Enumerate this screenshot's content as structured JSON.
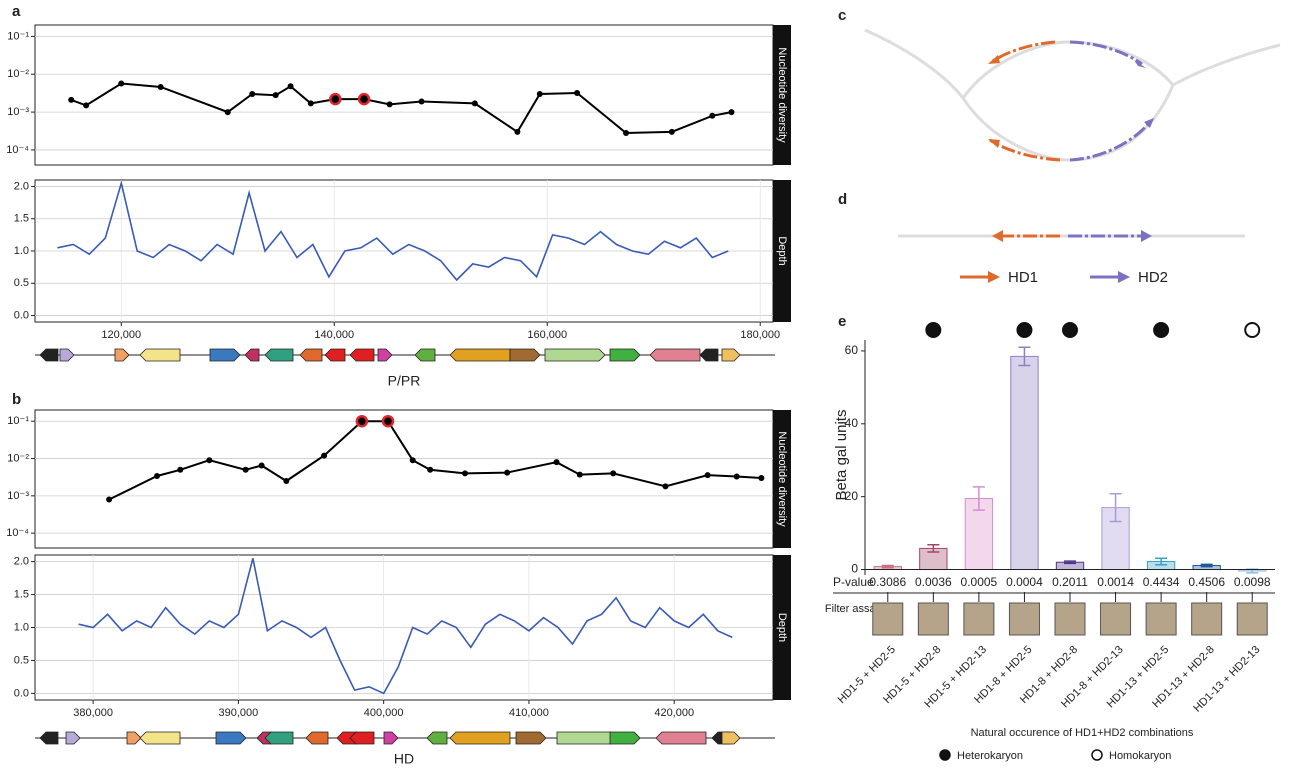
{
  "panel_labels": [
    "a",
    "b",
    "c",
    "d",
    "e"
  ],
  "tracks": [
    "P/PR",
    "HD"
  ],
  "diagram": {
    "legend": [
      {
        "name": "HD1",
        "color": "#e06a2c"
      },
      {
        "name": "HD2",
        "color": "#7b72c0"
      }
    ]
  },
  "chart_data": [
    {
      "type": "line",
      "ylabel": "Nucleotide diversity",
      "log_y": true,
      "grid": true,
      "color": "#000000",
      "markers": true,
      "highlight": [
        9,
        10
      ],
      "highlight_color": "#e0262b",
      "xlim": [
        111900,
        181200
      ],
      "ylim": [
        4e-05,
        0.2
      ],
      "yticks": [
        {
          "value": 0.1,
          "label": "10⁻¹"
        },
        {
          "value": 0.01,
          "label": "10⁻²"
        },
        {
          "value": 0.001,
          "label": "10⁻³"
        },
        {
          "value": 0.0001,
          "label": "10⁻⁴"
        }
      ],
      "x": [
        115300,
        116700,
        120000,
        123700,
        130000,
        132300,
        134500,
        135900,
        137800,
        140100,
        142800,
        145200,
        148200,
        153200,
        157200,
        159300,
        162800,
        167400,
        171700,
        175500,
        177300
      ],
      "values": [
        0.0021,
        0.0015,
        0.0057,
        0.0046,
        0.001,
        0.003,
        0.0028,
        0.0048,
        0.0017,
        0.0022,
        0.0022,
        0.0016,
        0.0019,
        0.0017,
        0.0003,
        0.003,
        0.0032,
        0.00028,
        0.0003,
        0.0008,
        0.001
      ]
    },
    {
      "type": "line",
      "ylabel": "Depth",
      "grid": true,
      "color": "#3a5bb5",
      "markers": false,
      "xlim": [
        111900,
        181200
      ],
      "ylim": [
        -0.1,
        2.1
      ],
      "xticks": [
        {
          "value": 120000,
          "label": "120,000"
        },
        {
          "value": 140000,
          "label": "140,000"
        },
        {
          "value": 160000,
          "label": "160,000"
        },
        {
          "value": 180000,
          "label": "180,000"
        }
      ],
      "yticks": [
        {
          "value": 0,
          "label": "0.0"
        },
        0.5,
        {
          "value": 1,
          "label": "1.0"
        },
        1.5,
        {
          "value": 2,
          "label": "2.0"
        }
      ],
      "x": [
        114000,
        115500,
        117000,
        118500,
        120000,
        121500,
        123000,
        124500,
        126000,
        127500,
        129000,
        130500,
        132000,
        133500,
        135000,
        136500,
        138000,
        139500,
        141000,
        142500,
        144000,
        145500,
        147000,
        148500,
        150000,
        151500,
        153000,
        154500,
        156000,
        157500,
        159000,
        160500,
        162000,
        163500,
        165000,
        166500,
        168000,
        169500,
        171000,
        172500,
        174000,
        175500,
        177000
      ],
      "values": [
        1.05,
        1.1,
        0.95,
        1.2,
        2.05,
        1.0,
        0.9,
        1.1,
        1.0,
        0.85,
        1.1,
        0.95,
        1.9,
        1.0,
        1.3,
        0.9,
        1.1,
        0.6,
        1.0,
        1.05,
        1.2,
        0.95,
        1.1,
        1.0,
        0.85,
        0.55,
        0.8,
        0.75,
        0.9,
        0.85,
        0.6,
        1.25,
        1.2,
        1.1,
        1.3,
        1.1,
        1.0,
        0.95,
        1.15,
        1.05,
        1.2,
        0.9,
        1.0
      ]
    },
    {
      "type": "line",
      "ylabel": "Nucleotide diversity",
      "log_y": true,
      "grid": true,
      "color": "#000000",
      "markers": true,
      "highlight": [
        8,
        9
      ],
      "highlight_color": "#e0262b",
      "xlim": [
        376000,
        426800
      ],
      "ylim": [
        4e-05,
        0.2
      ],
      "yticks": [
        {
          "value": 0.1,
          "label": "10⁻¹"
        },
        {
          "value": 0.01,
          "label": "10⁻²"
        },
        {
          "value": 0.001,
          "label": "10⁻³"
        },
        {
          "value": 0.0001,
          "label": "10⁻⁴"
        }
      ],
      "x": [
        381100,
        384400,
        386000,
        388000,
        390500,
        391600,
        393300,
        395900,
        398500,
        400300,
        402000,
        403200,
        405600,
        408500,
        411900,
        413500,
        415800,
        419400,
        422300,
        424300,
        426000
      ],
      "values": [
        0.0008,
        0.0034,
        0.005,
        0.009,
        0.005,
        0.0065,
        0.0025,
        0.012,
        0.1,
        0.1,
        0.009,
        0.005,
        0.004,
        0.0042,
        0.008,
        0.0037,
        0.004,
        0.0018,
        0.0036,
        0.0033,
        0.003
      ]
    },
    {
      "type": "line",
      "ylabel": "Depth",
      "grid": true,
      "color": "#3a5bb5",
      "markers": false,
      "xlim": [
        376000,
        426800
      ],
      "ylim": [
        -0.1,
        2.1
      ],
      "xticks": [
        {
          "value": 380000,
          "label": "380,000"
        },
        {
          "value": 390000,
          "label": "390,000"
        },
        {
          "value": 400000,
          "label": "400,000"
        },
        {
          "value": 410000,
          "label": "410,000"
        },
        {
          "value": 420000,
          "label": "420,000"
        }
      ],
      "yticks": [
        {
          "value": 0,
          "label": "0.0"
        },
        0.5,
        {
          "value": 1,
          "label": "1.0"
        },
        1.5,
        {
          "value": 2,
          "label": "2.0"
        }
      ],
      "x": [
        379000,
        380000,
        381000,
        382000,
        383000,
        384000,
        385000,
        386000,
        387000,
        388000,
        389000,
        390000,
        391000,
        392000,
        393000,
        394000,
        395000,
        396000,
        397000,
        398000,
        399000,
        400000,
        401000,
        402000,
        403000,
        404000,
        405000,
        406000,
        407000,
        408000,
        409000,
        410000,
        411000,
        412000,
        413000,
        414000,
        415000,
        416000,
        417000,
        418000,
        419000,
        420000,
        421000,
        422000,
        423000,
        424000
      ],
      "values": [
        1.05,
        1.0,
        1.2,
        0.95,
        1.1,
        1.0,
        1.3,
        1.05,
        0.9,
        1.1,
        1.0,
        1.2,
        2.05,
        0.95,
        1.1,
        1.0,
        0.85,
        1.0,
        0.5,
        0.05,
        0.1,
        0.0,
        0.4,
        1.0,
        0.9,
        1.1,
        1.0,
        0.7,
        1.05,
        1.2,
        1.1,
        0.95,
        1.15,
        1.0,
        0.75,
        1.1,
        1.2,
        1.45,
        1.1,
        1.0,
        1.3,
        1.1,
        1.0,
        1.2,
        0.95,
        0.85
      ]
    },
    {
      "type": "bar",
      "ylabel": "Beta gal units",
      "ylim": [
        -1.5,
        63
      ],
      "yticks": [
        0,
        20,
        40,
        60
      ],
      "categories": [
        "HD1-5 + HD2-5",
        "HD1-5 + HD2-8",
        "HD1-5 + HD2-13",
        "HD1-8 + HD2-5",
        "HD1-8 + HD2-8",
        "HD1-8 + HD2-13",
        "HD1-13 + HD2-5",
        "HD1-13 + HD2-8",
        "HD1-13 + HD2-13"
      ],
      "values": [
        0.8,
        5.8,
        19.5,
        58.5,
        2.0,
        17.0,
        2.2,
        1.1,
        -0.4
      ],
      "errors": [
        0.3,
        1.0,
        3.2,
        2.5,
        0.3,
        3.8,
        0.9,
        0.3,
        0.5
      ],
      "colors": [
        "#c9707d",
        "#a3456b",
        "#d98ccb",
        "#8f80c4",
        "#4f3589",
        "#a99bd8",
        "#3aa0c8",
        "#1a5a9a",
        "#8fbde2"
      ],
      "pvalue_label": "P-value",
      "pvalues": [
        0.3086,
        0.0036,
        0.0005,
        0.0004,
        0.2011,
        0.0014,
        0.4434,
        0.4506,
        0.0098
      ],
      "filter_label": "Filter assay",
      "occurrence": [
        null,
        "Heterokaryon",
        null,
        "Heterokaryon",
        "Heterokaryon",
        null,
        "Heterokaryon",
        null,
        "Homokaryon"
      ],
      "legend_title": "Natural occurence of HD1+HD2 combinations",
      "legend": [
        "Heterokaryon",
        "Homokaryon"
      ]
    }
  ]
}
